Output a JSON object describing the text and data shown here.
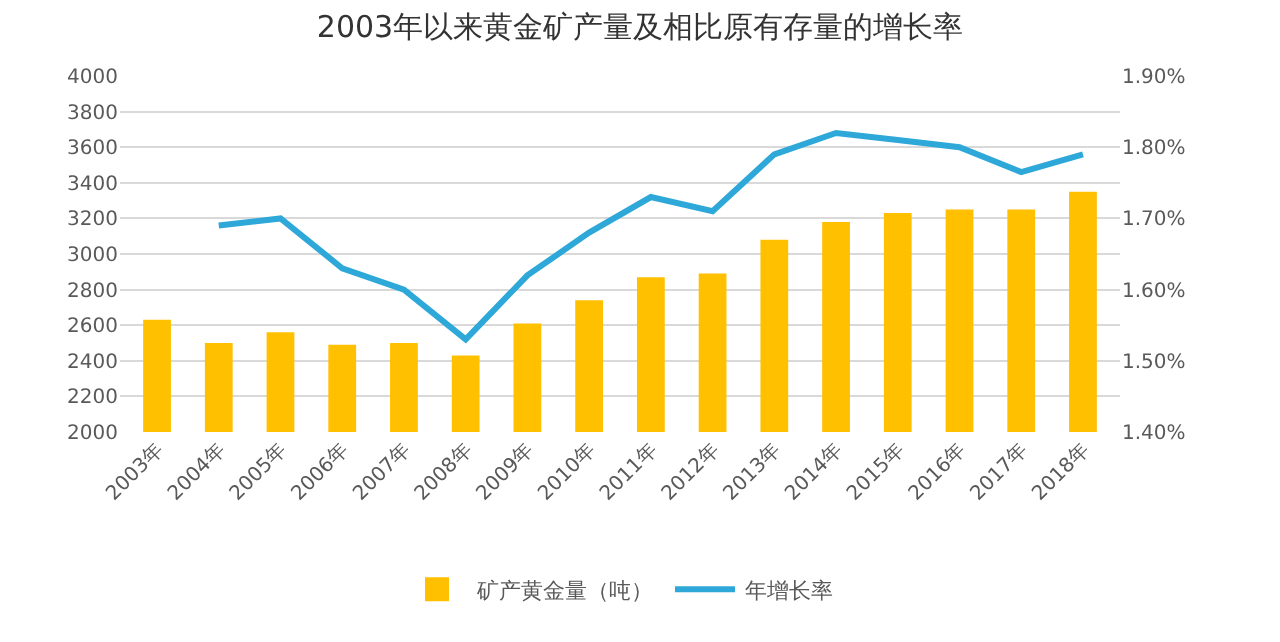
{
  "chart_data": {
    "type": "bar",
    "title": "2003年以来黄金矿产量及相比原有存量的增长率",
    "categories": [
      "2003年",
      "2004年",
      "2005年",
      "2006年",
      "2007年",
      "2008年",
      "2009年",
      "2010年",
      "2011年",
      "2012年",
      "2013年",
      "2014年",
      "2015年",
      "2016年",
      "2017年",
      "2018年"
    ],
    "series": [
      {
        "name": "矿产黄金量（吨）",
        "color": "#ffc000",
        "values": [
          2630,
          2500,
          2560,
          2490,
          2500,
          2430,
          2610,
          2740,
          2870,
          2890,
          3080,
          3180,
          3230,
          3250,
          3250,
          3350
        ]
      },
      {
        "name": "年增长率",
        "type": "line",
        "axis": "y2",
        "color": "#2ea8d8",
        "values": [
          null,
          1.69,
          1.7,
          1.63,
          1.6,
          1.53,
          1.62,
          1.68,
          1.73,
          1.71,
          1.79,
          1.82,
          1.81,
          1.8,
          1.765,
          1.79
        ]
      }
    ],
    "ylim": [
      2000,
      4000
    ],
    "yticks": [
      2000,
      2200,
      2400,
      2600,
      2800,
      3000,
      3200,
      3400,
      3600,
      3800,
      4000
    ],
    "y2lim": [
      1.4,
      1.9
    ],
    "y2ticks": [
      {
        "value": 1.4,
        "label": "1.40%"
      },
      {
        "value": 1.5,
        "label": "1.50%"
      },
      {
        "value": 1.6,
        "label": "1.60%"
      },
      {
        "value": 1.7,
        "label": "1.70%"
      },
      {
        "value": 1.8,
        "label": "1.80%"
      },
      {
        "value": 1.9,
        "label": "1.90%"
      }
    ],
    "grid": "y",
    "legend": "bottom",
    "marker": "none",
    "line_style": "solid"
  }
}
